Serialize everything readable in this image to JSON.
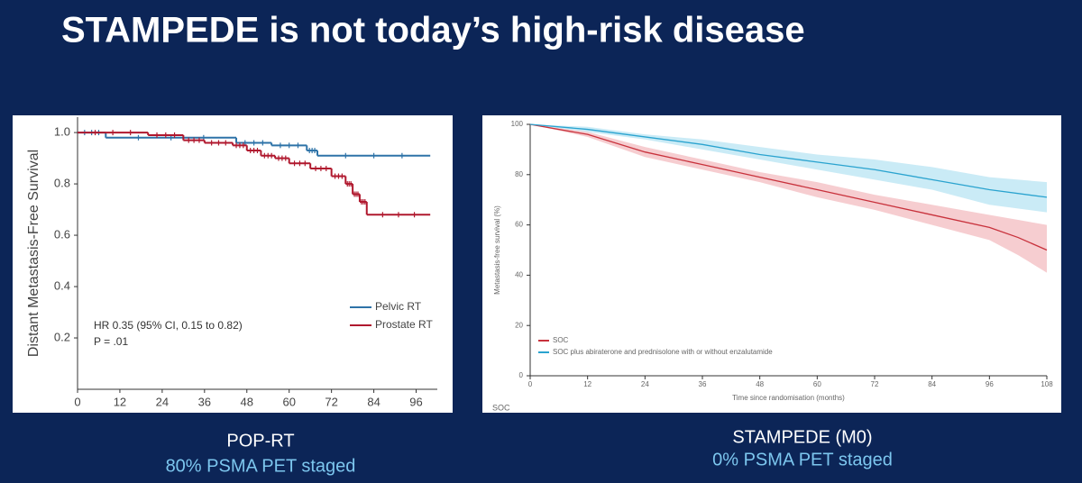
{
  "title": "STAMPEDE is not today’s high-risk disease",
  "chart_data": [
    {
      "type": "step",
      "caption": "POP-RT",
      "subcaption": "80% PSMA PET staged",
      "y_label": "Distant Metastasis-Free Survival",
      "annotations": [
        "HR 0.35 (95% CI, 0.15 to 0.82)",
        "P = .01"
      ],
      "xlim": [
        0,
        102
      ],
      "xticks": [
        0,
        12,
        24,
        36,
        48,
        60,
        72,
        84,
        96
      ],
      "ylim": [
        0,
        1.06
      ],
      "yticks": [
        {
          "value": 1,
          "label": "1.0"
        },
        0.8,
        0.6,
        0.4,
        0.2
      ],
      "legend": "lower right",
      "series": [
        {
          "name": "Pelvic RT",
          "color": "#2e73a8",
          "x": [
            0,
            8,
            45,
            55,
            65,
            68,
            100
          ],
          "values": [
            1.0,
            0.98,
            0.96,
            0.95,
            0.93,
            0.91,
            0.91
          ]
        },
        {
          "name": "Prostate RT",
          "color": "#b0182e",
          "x": [
            0,
            20,
            30,
            36,
            44,
            48,
            52,
            56,
            60,
            66,
            72,
            76,
            78,
            80,
            82,
            100
          ],
          "values": [
            1.0,
            0.99,
            0.97,
            0.96,
            0.95,
            0.93,
            0.91,
            0.9,
            0.88,
            0.86,
            0.83,
            0.8,
            0.76,
            0.73,
            0.68,
            0.68
          ]
        }
      ]
    },
    {
      "type": "line",
      "caption": "STAMPEDE (M0)",
      "subcaption": "0% PSMA PET staged",
      "x_label": "Time since randomisation (months)",
      "y_label": "Metastasis-free survival (%)",
      "footer_text": "SOC",
      "xlim": [
        0,
        108
      ],
      "xticks": [
        0,
        12,
        24,
        36,
        48,
        60,
        72,
        84,
        96,
        108
      ],
      "ylim": [
        0,
        100
      ],
      "yticks": [
        0,
        20,
        40,
        60,
        80,
        100
      ],
      "legend": "lower left",
      "series": [
        {
          "name": "SOC",
          "color": "#c8323c",
          "band_color": "#f2b8bc",
          "x": [
            0,
            12,
            24,
            36,
            48,
            60,
            72,
            84,
            96,
            102,
            108
          ],
          "values": [
            100,
            96,
            89,
            84,
            79,
            74,
            69,
            64,
            59,
            55,
            50
          ],
          "lower": [
            100,
            95,
            87,
            82,
            77,
            71,
            66,
            60,
            54,
            48,
            41
          ],
          "upper": [
            100,
            97,
            91,
            86,
            81,
            77,
            72,
            68,
            64,
            62,
            60
          ]
        },
        {
          "name": "SOC plus abiraterone and prednisolone with or without enzalutamide",
          "color": "#2aa3cf",
          "band_color": "#b4e2f2",
          "x": [
            0,
            12,
            24,
            36,
            48,
            60,
            72,
            84,
            96,
            108
          ],
          "values": [
            100,
            98,
            95,
            92,
            88,
            85,
            82,
            78,
            74,
            71
          ],
          "lower": [
            100,
            97,
            94,
            90,
            86,
            82,
            78,
            74,
            68,
            65
          ],
          "upper": [
            100,
            99,
            96,
            94,
            91,
            88,
            86,
            83,
            79,
            77
          ]
        }
      ]
    }
  ]
}
